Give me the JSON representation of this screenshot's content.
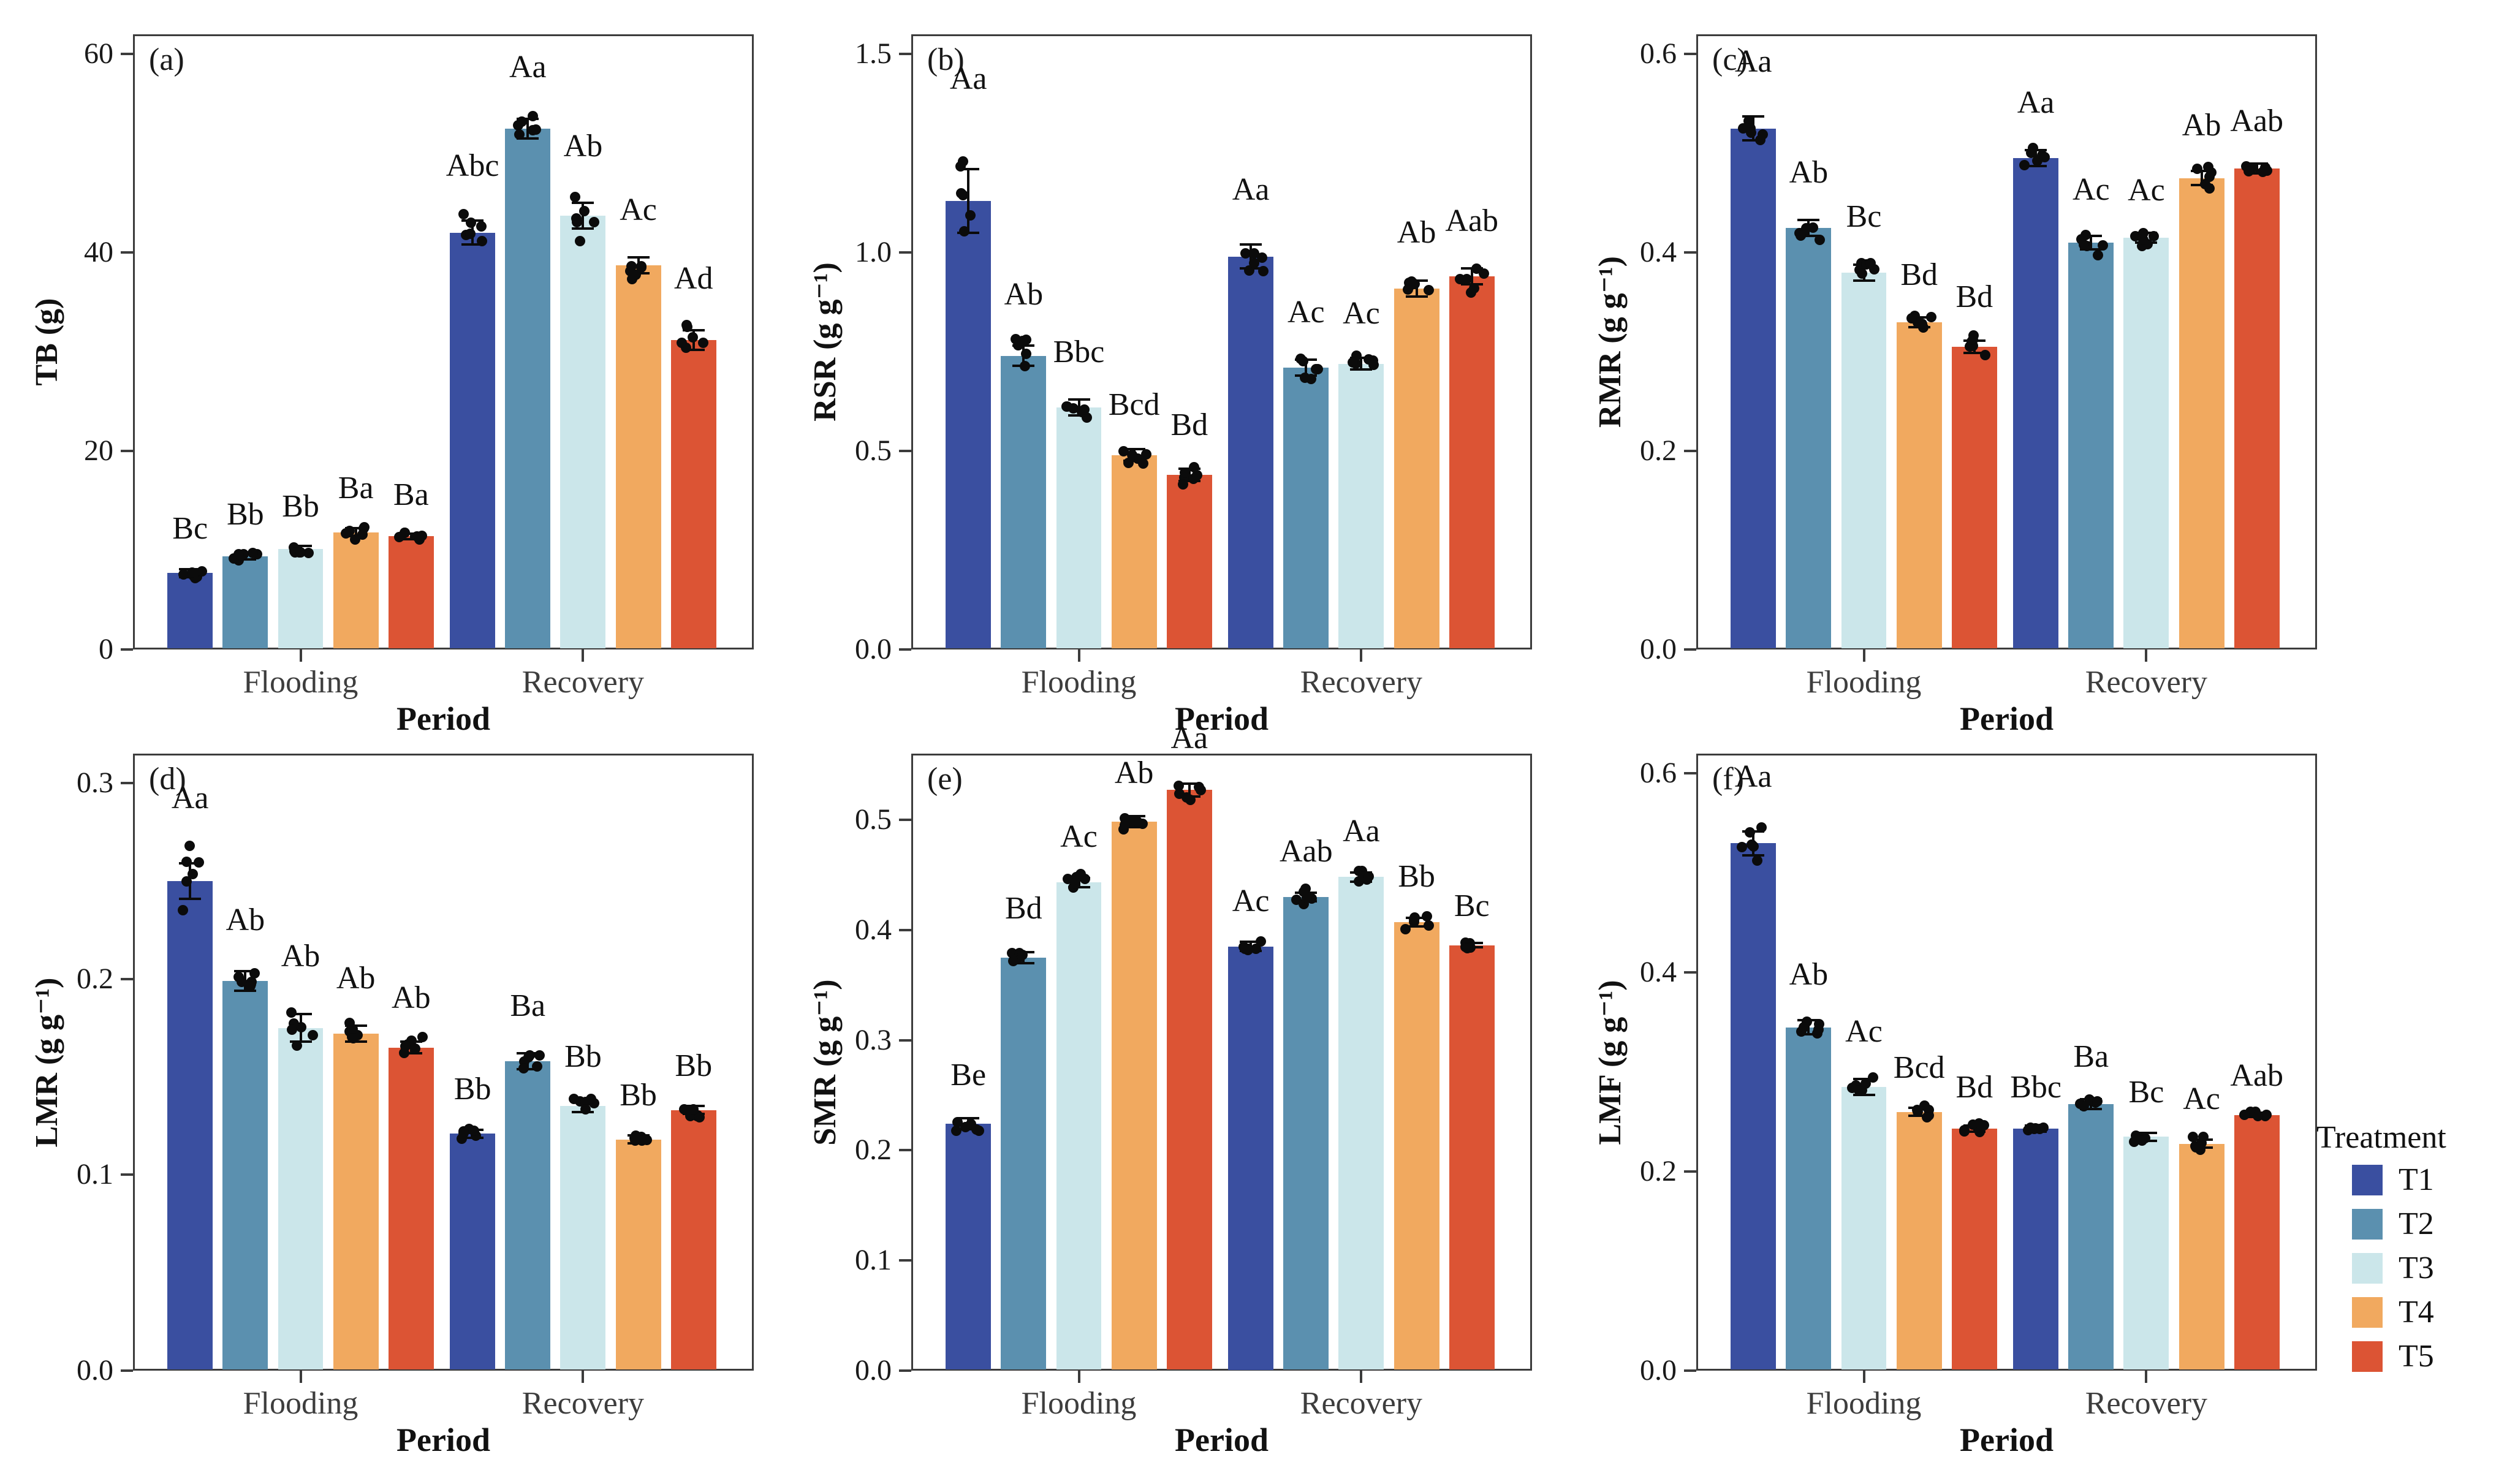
{
  "figure": {
    "xlabel": "Period",
    "categories": [
      "Flooding",
      "Recovery"
    ],
    "legend": {
      "title": "Treatment",
      "items": [
        {
          "label": "T1",
          "color": "#3A4FA0"
        },
        {
          "label": "T2",
          "color": "#5B90AF"
        },
        {
          "label": "T3",
          "color": "#CBE6EA"
        },
        {
          "label": "T4",
          "color": "#F1A95F"
        },
        {
          "label": "T5",
          "color": "#DC5434"
        }
      ]
    },
    "colors": {
      "axis": "#3C3C3C",
      "tick_text": "#1A1A1A",
      "category_text": "#3D3D3D",
      "dot": "#0B0B0B",
      "error_bar": "#0B0B0B",
      "background": "#FFFFFF"
    }
  },
  "chart_data": [
    {
      "type": "bar",
      "panel_tag": "(a)",
      "ylabel": "TB (g)",
      "xlabel": "Period",
      "categories": [
        "Flooding",
        "Recovery"
      ],
      "ylim": [
        0,
        62
      ],
      "ytick_values": [
        0,
        20,
        40,
        60
      ],
      "ytick_labels": [
        "0",
        "20",
        "40",
        "60"
      ],
      "points_per_bar": 6,
      "legend_position": "none",
      "series": [
        {
          "name": "T1",
          "values": [
            7.7,
            42.0
          ],
          "errors": [
            0.4,
            1.2
          ],
          "letters": [
            "Bc",
            "Abc"
          ]
        },
        {
          "name": "T2",
          "values": [
            9.4,
            52.5
          ],
          "errors": [
            0.3,
            1.0
          ],
          "letters": [
            "Bb",
            "Aa"
          ]
        },
        {
          "name": "T3",
          "values": [
            10.1,
            43.7
          ],
          "errors": [
            0.35,
            1.3
          ],
          "letters": [
            "Bb",
            "Ab"
          ]
        },
        {
          "name": "T4",
          "values": [
            11.8,
            38.7
          ],
          "errors": [
            0.4,
            0.8
          ],
          "letters": [
            "Ba",
            "Ac"
          ]
        },
        {
          "name": "T5",
          "values": [
            11.4,
            31.2
          ],
          "errors": [
            0.3,
            1.0
          ],
          "letters": [
            "Ba",
            "Ad"
          ]
        }
      ]
    },
    {
      "type": "bar",
      "panel_tag": "(b)",
      "ylabel": "RSR (g g⁻¹)",
      "xlabel": "Period",
      "categories": [
        "Flooding",
        "Recovery"
      ],
      "ylim": [
        0,
        1.55
      ],
      "ytick_values": [
        0.0,
        0.5,
        1.0,
        1.5
      ],
      "ytick_labels": [
        "0.0",
        "0.5",
        "1.0",
        "1.5"
      ],
      "points_per_bar": 6,
      "legend_position": "none",
      "series": [
        {
          "name": "T1",
          "values": [
            1.13,
            0.99
          ],
          "errors": [
            0.08,
            0.03
          ],
          "letters": [
            "Aa",
            "Aa"
          ]
        },
        {
          "name": "T2",
          "values": [
            0.74,
            0.71
          ],
          "errors": [
            0.025,
            0.02
          ],
          "letters": [
            "Ab",
            "Ac"
          ]
        },
        {
          "name": "T3",
          "values": [
            0.61,
            0.72
          ],
          "errors": [
            0.02,
            0.015
          ],
          "letters": [
            "Bbc",
            "Ac"
          ]
        },
        {
          "name": "T4",
          "values": [
            0.49,
            0.91
          ],
          "errors": [
            0.015,
            0.02
          ],
          "letters": [
            "Bcd",
            "Ab"
          ]
        },
        {
          "name": "T5",
          "values": [
            0.44,
            0.94
          ],
          "errors": [
            0.015,
            0.02
          ],
          "letters": [
            "Bd",
            "Aab"
          ]
        }
      ]
    },
    {
      "type": "bar",
      "panel_tag": "(c)",
      "ylabel": "RMR (g g⁻¹)",
      "xlabel": "Period",
      "categories": [
        "Flooding",
        "Recovery"
      ],
      "ylim": [
        0,
        0.62
      ],
      "ytick_values": [
        0.0,
        0.2,
        0.4,
        0.6
      ],
      "ytick_labels": [
        "0.0",
        "0.2",
        "0.4",
        "0.6"
      ],
      "points_per_bar": 6,
      "legend_position": "none",
      "series": [
        {
          "name": "T1",
          "values": [
            0.525,
            0.495
          ],
          "errors": [
            0.012,
            0.008
          ],
          "letters": [
            "Aa",
            "Aa"
          ]
        },
        {
          "name": "T2",
          "values": [
            0.425,
            0.41
          ],
          "errors": [
            0.008,
            0.007
          ],
          "letters": [
            "Ab",
            "Ac"
          ]
        },
        {
          "name": "T3",
          "values": [
            0.38,
            0.415
          ],
          "errors": [
            0.008,
            0.005
          ],
          "letters": [
            "Bc",
            "Ac"
          ]
        },
        {
          "name": "T4",
          "values": [
            0.33,
            0.475
          ],
          "errors": [
            0.005,
            0.007
          ],
          "letters": [
            "Bd",
            "Ab"
          ]
        },
        {
          "name": "T5",
          "values": [
            0.305,
            0.485
          ],
          "errors": [
            0.006,
            0.005
          ],
          "letters": [
            "Bd",
            "Aab"
          ]
        }
      ]
    },
    {
      "type": "bar",
      "panel_tag": "(d)",
      "ylabel": "LMR (g g⁻¹)",
      "xlabel": "Period",
      "categories": [
        "Flooding",
        "Recovery"
      ],
      "ylim": [
        0,
        0.315
      ],
      "ytick_values": [
        0.0,
        0.1,
        0.2,
        0.3
      ],
      "ytick_labels": [
        "0.0",
        "0.1",
        "0.2",
        "0.3"
      ],
      "points_per_bar": 6,
      "legend_position": "none",
      "series": [
        {
          "name": "T1",
          "values": [
            0.25,
            0.121
          ],
          "errors": [
            0.009,
            0.002
          ],
          "letters": [
            "Aa",
            "Bb"
          ]
        },
        {
          "name": "T2",
          "values": [
            0.199,
            0.158
          ],
          "errors": [
            0.005,
            0.004
          ],
          "letters": [
            "Ab",
            "Ba"
          ]
        },
        {
          "name": "T3",
          "values": [
            0.175,
            0.135
          ],
          "errors": [
            0.007,
            0.003
          ],
          "letters": [
            "Ab",
            "Bb"
          ]
        },
        {
          "name": "T4",
          "values": [
            0.172,
            0.118
          ],
          "errors": [
            0.004,
            0.002
          ],
          "letters": [
            "Ab",
            "Bb"
          ]
        },
        {
          "name": "T5",
          "values": [
            0.165,
            0.133
          ],
          "errors": [
            0.003,
            0.002
          ],
          "letters": [
            "Ab",
            "Bb"
          ]
        }
      ]
    },
    {
      "type": "bar",
      "panel_tag": "(e)",
      "ylabel": "SMR (g g⁻¹)",
      "xlabel": "Period",
      "categories": [
        "Flooding",
        "Recovery"
      ],
      "ylim": [
        0,
        0.56
      ],
      "ytick_values": [
        0.0,
        0.1,
        0.2,
        0.3,
        0.4,
        0.5
      ],
      "ytick_labels": [
        "0.0",
        "0.1",
        "0.2",
        "0.3",
        "0.4",
        "0.5"
      ],
      "points_per_bar": 6,
      "legend_position": "none",
      "series": [
        {
          "name": "T1",
          "values": [
            0.224,
            0.385
          ],
          "errors": [
            0.005,
            0.004
          ],
          "letters": [
            "Be",
            "Ac"
          ]
        },
        {
          "name": "T2",
          "values": [
            0.375,
            0.43
          ],
          "errors": [
            0.005,
            0.004
          ],
          "letters": [
            "Bd",
            "Aab"
          ]
        },
        {
          "name": "T3",
          "values": [
            0.443,
            0.448
          ],
          "errors": [
            0.004,
            0.004
          ],
          "letters": [
            "Ac",
            "Aa"
          ]
        },
        {
          "name": "T4",
          "values": [
            0.498,
            0.407
          ],
          "errors": [
            0.005,
            0.004
          ],
          "letters": [
            "Ab",
            "Bb"
          ]
        },
        {
          "name": "T5",
          "values": [
            0.527,
            0.386
          ],
          "errors": [
            0.006,
            0.002
          ],
          "letters": [
            "Aa",
            "Bc"
          ]
        }
      ]
    },
    {
      "type": "bar",
      "panel_tag": "(f)",
      "ylabel": "LMF (g g⁻¹)",
      "xlabel": "Period",
      "categories": [
        "Flooding",
        "Recovery"
      ],
      "ylim": [
        0,
        0.62
      ],
      "ytick_values": [
        0.0,
        0.2,
        0.4,
        0.6
      ],
      "ytick_labels": [
        "0.0",
        "0.2",
        "0.4",
        "0.6"
      ],
      "points_per_bar": 6,
      "legend_position": "right",
      "series": [
        {
          "name": "T1",
          "values": [
            0.53,
            0.243
          ],
          "errors": [
            0.012,
            0.003
          ],
          "letters": [
            "Aa",
            "Bbc"
          ]
        },
        {
          "name": "T2",
          "values": [
            0.345,
            0.268
          ],
          "errors": [
            0.007,
            0.005
          ],
          "letters": [
            "Ab",
            "Ba"
          ]
        },
        {
          "name": "T3",
          "values": [
            0.285,
            0.235
          ],
          "errors": [
            0.008,
            0.004
          ],
          "letters": [
            "Ac",
            "Bc"
          ]
        },
        {
          "name": "T4",
          "values": [
            0.26,
            0.228
          ],
          "errors": [
            0.004,
            0.004
          ],
          "letters": [
            "Bcd",
            "Ac"
          ]
        },
        {
          "name": "T5",
          "values": [
            0.243,
            0.257
          ],
          "errors": [
            0.003,
            0.002
          ],
          "letters": [
            "Bd",
            "Aab"
          ]
        }
      ]
    }
  ]
}
